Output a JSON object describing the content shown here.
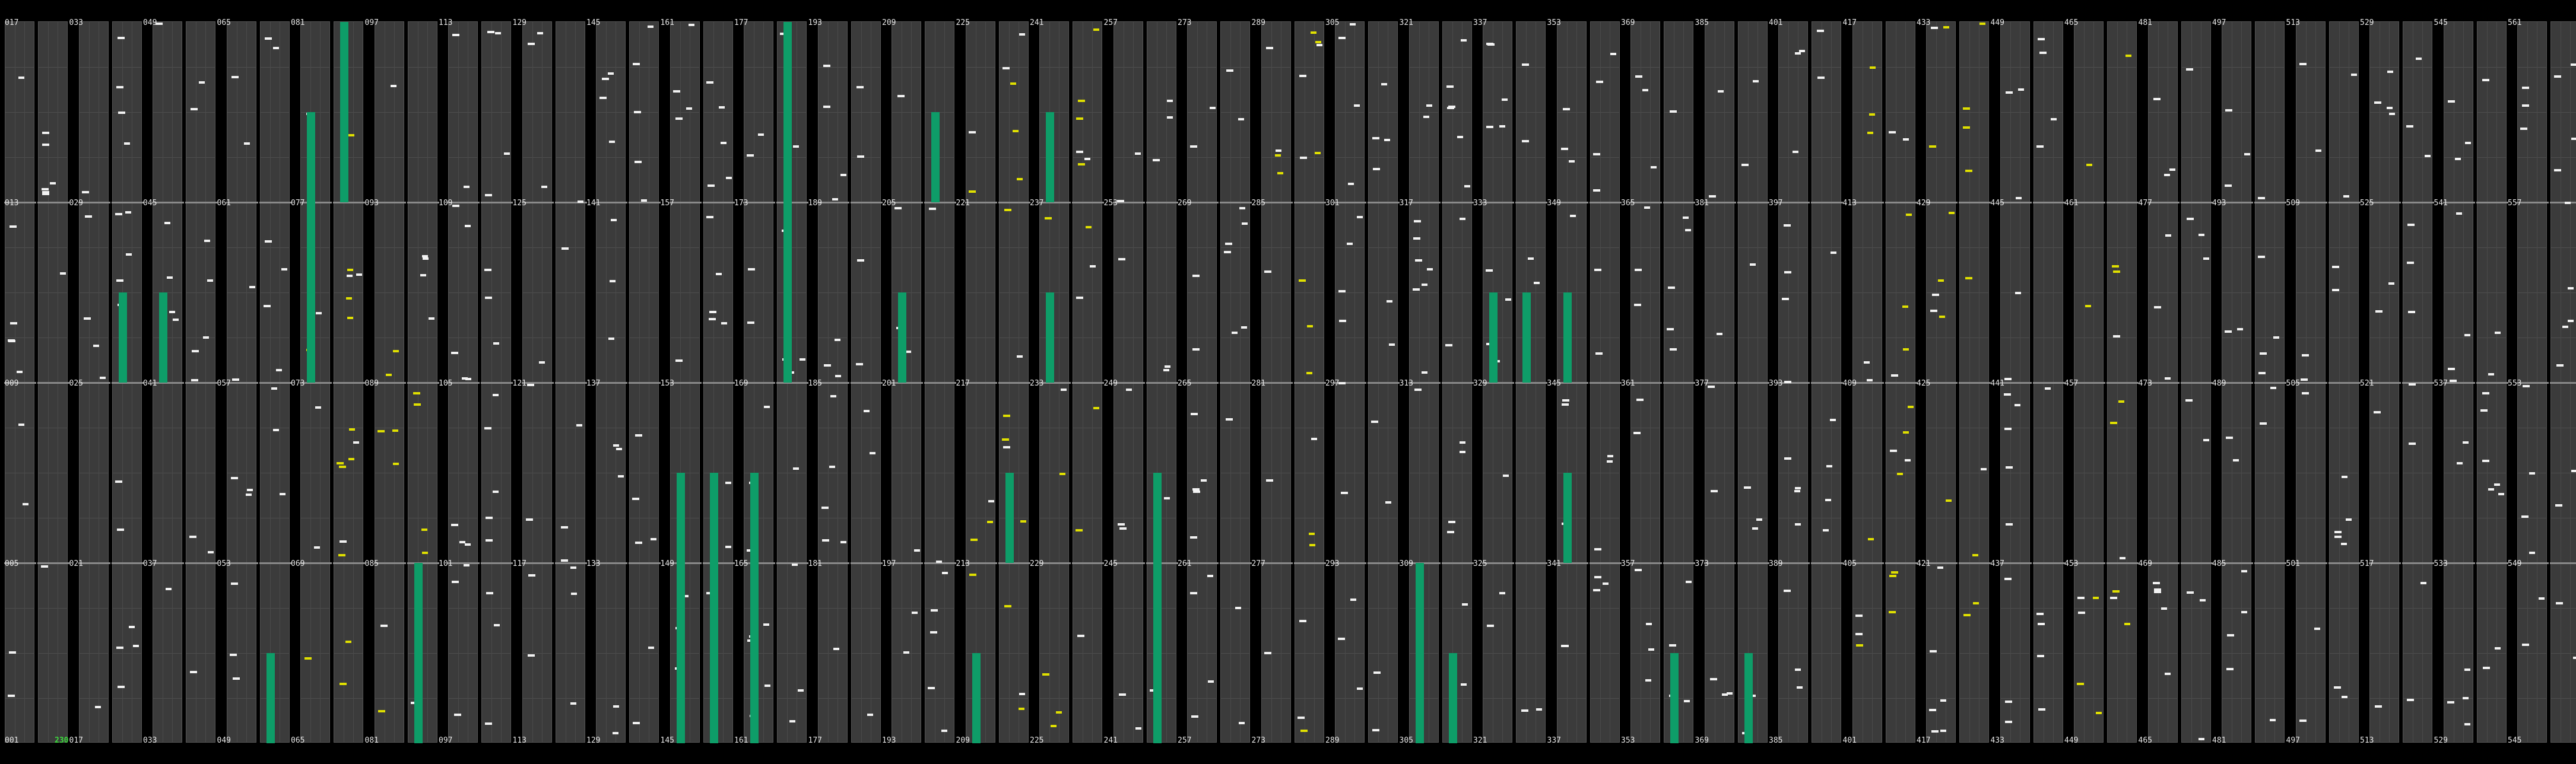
{
  "labels_top": [
    [
      "017",
      "033"
    ],
    [
      "049",
      "065"
    ],
    [
      "081",
      "097"
    ],
    [
      "113",
      "129"
    ],
    [
      "145",
      "161"
    ],
    [
      "177",
      "193"
    ],
    [
      "209",
      "225"
    ],
    [
      "241",
      "257"
    ],
    [
      "273",
      "289"
    ],
    [
      "305",
      "321"
    ],
    [
      "337",
      "353"
    ],
    [
      "369",
      "385"
    ],
    [
      "401",
      "417"
    ],
    [
      "433",
      "449"
    ],
    [
      "465",
      "481"
    ],
    [
      "497",
      "513"
    ],
    [
      "529",
      "545"
    ],
    [
      "561",
      ""
    ]
  ],
  "rows": [
    [
      "017",
      "013",
      "009",
      "005",
      "001"
    ],
    [
      "033",
      "029",
      "025",
      "021",
      "017"
    ],
    [
      "049",
      "045",
      "041",
      "037",
      "033"
    ],
    [
      "065",
      "061",
      "057",
      "053",
      "049"
    ],
    [
      "081",
      "077",
      "073",
      "069",
      "065"
    ],
    [
      "097",
      "093",
      "089",
      "085",
      "081"
    ],
    [
      "113",
      "109",
      "105",
      "101",
      "097"
    ],
    [
      "129",
      "125",
      "121",
      "117",
      "113"
    ],
    [
      "145",
      "141",
      "137",
      "133",
      "129"
    ],
    [
      "161",
      "157",
      "153",
      "149",
      "145"
    ],
    [
      "177",
      "173",
      "169",
      "165",
      "161"
    ],
    [
      "193",
      "189",
      "185",
      "181",
      "177"
    ],
    [
      "209",
      "205",
      "201",
      "197",
      "193"
    ],
    [
      "225",
      "221",
      "217",
      "213",
      "209"
    ],
    [
      "241",
      "237",
      "233",
      "229",
      "225"
    ],
    [
      "257",
      "253",
      "249",
      "245",
      "241"
    ],
    [
      "273",
      "269",
      "265",
      "261",
      "257"
    ],
    [
      "289",
      "285",
      "281",
      "277",
      "273"
    ],
    [
      "305",
      "301",
      "297",
      "293",
      "289"
    ],
    [
      "321",
      "317",
      "313",
      "309",
      "305"
    ],
    [
      "337",
      "333",
      "329",
      "325",
      "321"
    ],
    [
      "353",
      "349",
      "345",
      "341",
      "337"
    ],
    [
      "369",
      "365",
      "361",
      "357",
      "353"
    ],
    [
      "385",
      "381",
      "377",
      "373",
      "369"
    ],
    [
      "401",
      "397",
      "393",
      "389",
      "385"
    ],
    [
      "417",
      "413",
      "409",
      "405",
      "401"
    ],
    [
      "433",
      "429",
      "425",
      "421",
      "417"
    ],
    [
      "449",
      "445",
      "441",
      "437",
      "433"
    ],
    [
      "465",
      "461",
      "457",
      "453",
      "449"
    ],
    [
      "481",
      "477",
      "473",
      "469",
      "465"
    ],
    [
      "497",
      "493",
      "489",
      "485",
      "481"
    ],
    [
      "513",
      "509",
      "505",
      "501",
      "497"
    ],
    [
      "529",
      "525",
      "521",
      "517",
      "513"
    ],
    [
      "545",
      "541",
      "537",
      "533",
      "529"
    ],
    [
      "561",
      "557",
      "553",
      "549",
      "545"
    ]
  ],
  "highlight": {
    "text": "230",
    "column": 0
  },
  "colors": {
    "background": "#000000",
    "track": "#3b3b3b",
    "active": "#0e9d68",
    "white_mark": "#f2f2f2",
    "yellow_mark": "#e0e000",
    "label": "#e8e8e8",
    "highlight": "#3ddc3d"
  },
  "bars": [
    {
      "col": 1,
      "track": 1,
      "from": 0.375,
      "to": 0.5
    },
    {
      "col": 2,
      "track": 0,
      "from": 0.375,
      "to": 0.5
    },
    {
      "col": 3,
      "track": 1,
      "from": 0.875,
      "to": 1.0
    },
    {
      "col": 4,
      "track": 0,
      "from": 0.125,
      "to": 0.5
    },
    {
      "col": 4,
      "track": 1,
      "from": 0.0,
      "to": 0.25
    },
    {
      "col": 5,
      "track": 1,
      "from": 0.75,
      "to": 1.0
    },
    {
      "col": 9,
      "track": 0,
      "from": 0.625,
      "to": 1.0
    },
    {
      "col": 9,
      "track": 1,
      "from": 0.625,
      "to": 1.0
    },
    {
      "col": 10,
      "track": 0,
      "from": 0.625,
      "to": 1.0
    },
    {
      "col": 10,
      "track": 1,
      "from": 0.0,
      "to": 0.5
    },
    {
      "col": 12,
      "track": 1,
      "from": 0.125,
      "to": 0.25
    },
    {
      "col": 12,
      "track": 0,
      "from": 0.375,
      "to": 0.5
    },
    {
      "col": 13,
      "track": 1,
      "from": 0.625,
      "to": 0.75
    },
    {
      "col": 13,
      "track": 0,
      "from": 0.875,
      "to": 1.0
    },
    {
      "col": 14,
      "track": 0,
      "from": 0.125,
      "to": 0.25
    },
    {
      "col": 14,
      "track": 0,
      "from": 0.375,
      "to": 0.5
    },
    {
      "col": 15,
      "track": 1,
      "from": 0.625,
      "to": 1.0
    },
    {
      "col": 19,
      "track": 0,
      "from": 0.75,
      "to": 1.0
    },
    {
      "col": 19,
      "track": 1,
      "from": 0.875,
      "to": 1.0
    },
    {
      "col": 20,
      "track": 0,
      "from": 0.375,
      "to": 0.5
    },
    {
      "col": 20,
      "track": 1,
      "from": 0.375,
      "to": 0.5
    },
    {
      "col": 21,
      "track": 0,
      "from": 0.375,
      "to": 0.5
    },
    {
      "col": 21,
      "track": 0,
      "from": 0.625,
      "to": 0.75
    },
    {
      "col": 22,
      "track": 1,
      "from": 0.875,
      "to": 1.0
    },
    {
      "col": 23,
      "track": 1,
      "from": 0.875,
      "to": 1.0
    }
  ]
}
